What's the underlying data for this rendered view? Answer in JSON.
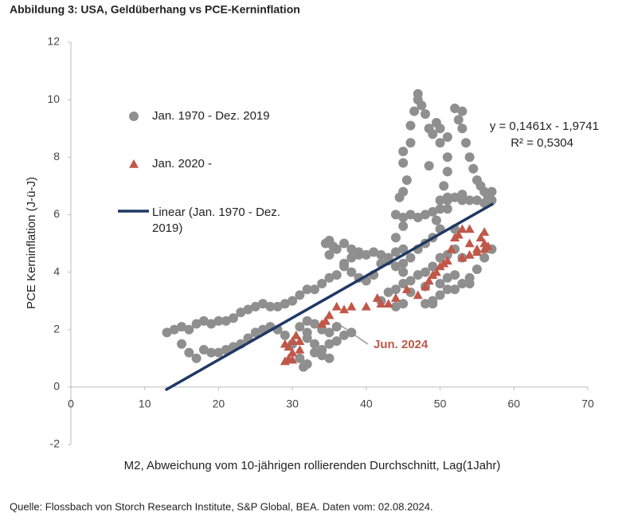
{
  "chart_data": {
    "type": "scatter",
    "title": "Abbildung 3: USA, Geldüberhang vs PCE-Kerninflation",
    "x_label": "M2, Abweichung vom 10-jährigen rollierenden Durchschnitt, Lag(1Jahr)",
    "y_label": "PCE Kerninflation (J-ü-J)",
    "source": "Quelle: Flossbach von Storch Research Institute, S&P Global, BEA. Daten vom: 02.08.2024.",
    "annotations": [
      "y = 0,1461x - 1,9741",
      "R² = 0,5304",
      "Jun. 2024"
    ],
    "xlim": [
      0,
      70
    ],
    "xticks": [
      0,
      10,
      20,
      30,
      40,
      50,
      60,
      70
    ],
    "ylim": [
      -2,
      12
    ],
    "yticks": [
      -2,
      0,
      2,
      4,
      6,
      8,
      10,
      12
    ],
    "series": [
      {
        "name": "Jan. 1970 - Dez. 2019",
        "color": "#8f8f8f",
        "marker": "circle",
        "x": [
          13,
          14,
          15,
          16,
          17,
          18,
          19,
          20,
          21,
          22,
          23,
          24,
          25,
          26,
          27,
          28,
          29,
          30,
          31,
          32,
          33,
          34,
          35,
          36,
          37,
          38,
          39,
          40,
          41,
          42,
          43,
          44,
          45,
          15,
          16,
          17,
          18,
          19,
          20,
          21,
          22,
          23,
          24,
          25,
          26,
          27,
          28,
          29,
          30,
          31,
          31.5,
          32,
          33,
          34,
          35,
          36,
          32,
          33,
          32,
          34,
          35,
          36,
          37,
          38,
          33,
          34,
          35,
          31,
          32,
          34.5,
          35,
          35.5,
          35,
          36,
          37,
          38,
          39,
          37,
          38,
          39,
          40,
          41,
          42,
          43,
          44,
          45,
          44,
          45,
          44.5,
          45,
          45.5,
          45,
          45,
          46,
          46,
          46.5,
          47,
          47,
          47.5,
          48,
          48.5,
          49,
          49.5,
          50,
          50,
          51,
          51,
          51,
          50.5,
          51,
          50,
          49.5,
          50,
          49,
          48,
          47,
          46,
          45,
          44,
          45,
          46,
          47,
          48,
          49,
          50,
          51,
          52,
          53,
          52.5,
          53,
          53.5,
          54,
          54.5,
          55,
          55.5,
          56,
          56.5,
          57,
          57,
          56,
          55,
          54,
          53,
          52,
          53,
          51,
          52,
          52,
          51,
          50,
          49,
          48,
          47,
          46,
          45,
          44,
          43,
          42,
          44,
          45,
          46,
          48,
          49,
          50,
          51,
          52,
          53,
          54,
          55,
          56,
          57,
          54,
          53,
          52,
          49,
          48,
          50,
          51,
          48.5
        ],
        "y": [
          1.9,
          2.0,
          2.1,
          2.0,
          2.2,
          2.3,
          2.2,
          2.3,
          2.3,
          2.4,
          2.6,
          2.7,
          2.8,
          2.9,
          2.8,
          2.8,
          2.9,
          3.0,
          3.2,
          3.4,
          3.4,
          3.6,
          3.8,
          3.9,
          4.2,
          4.5,
          4.6,
          4.6,
          4.7,
          4.6,
          4.4,
          4.2,
          4.0,
          1.5,
          1.2,
          1.0,
          1.3,
          1.2,
          1.2,
          1.3,
          1.4,
          1.5,
          1.7,
          1.9,
          2.0,
          2.1,
          2.0,
          1.8,
          1.5,
          1.0,
          0.7,
          0.8,
          1.2,
          1.3,
          1.5,
          1.6,
          1.9,
          2.2,
          2.3,
          2.0,
          1.9,
          2.1,
          1.8,
          1.9,
          1.5,
          1.1,
          1.0,
          2.1,
          1.7,
          5.0,
          5.1,
          4.9,
          4.6,
          4.8,
          5.0,
          4.8,
          4.7,
          4.3,
          4.0,
          3.8,
          3.7,
          3.9,
          4.3,
          4.5,
          4.7,
          4.8,
          5.2,
          5.6,
          6.6,
          6.8,
          7.2,
          7.8,
          8.2,
          8.5,
          9.1,
          9.6,
          10.0,
          10.2,
          9.8,
          9.5,
          9.0,
          8.8,
          9.2,
          9.0,
          8.5,
          8.7,
          8.0,
          7.5,
          7.0,
          6.5,
          6.2,
          5.8,
          5.5,
          5.2,
          5.0,
          4.8,
          4.5,
          4.3,
          6.0,
          5.9,
          6.0,
          5.9,
          6.0,
          6.1,
          6.5,
          6.6,
          9.7,
          9.6,
          9.3,
          9.0,
          8.5,
          8.0,
          7.6,
          7.2,
          7.0,
          6.8,
          6.6,
          6.8,
          6.5,
          6.4,
          6.5,
          6.5,
          6.5,
          6.6,
          6.7,
          6.2,
          5.5,
          4.8,
          4.6,
          4.5,
          4.2,
          4.0,
          3.9,
          3.7,
          3.6,
          3.4,
          3.3,
          3.0,
          2.8,
          2.9,
          3.3,
          2.9,
          3.0,
          3.2,
          3.4,
          3.4,
          3.6,
          3.8,
          4.1,
          4.5,
          4.8,
          3.6,
          4.5,
          3.9,
          2.9,
          3.5,
          3.6,
          3.8,
          7.7
        ]
      },
      {
        "name": "Jan. 2020 -",
        "color": "#c0584a",
        "marker": "triangle",
        "x": [
          29,
          29.5,
          30,
          30,
          29.5,
          30,
          30.5,
          31,
          29,
          31,
          34,
          35,
          36,
          37,
          38,
          40,
          41.5,
          42,
          43,
          44,
          45.5,
          47,
          48,
          48.5,
          49,
          49.5,
          50,
          50.5,
          51,
          51.5,
          52,
          52.5,
          53,
          54,
          54,
          55,
          55.5,
          56,
          56,
          56.5,
          56,
          55,
          54,
          53,
          34.5
        ],
        "y": [
          0.9,
          1.0,
          0.95,
          1.2,
          1.4,
          1.6,
          1.8,
          1.6,
          1.5,
          1.3,
          2.2,
          2.5,
          2.8,
          2.7,
          2.8,
          2.8,
          3.1,
          2.9,
          2.9,
          3.1,
          3.4,
          3.2,
          3.5,
          3.7,
          3.9,
          4.0,
          4.2,
          4.3,
          4.4,
          4.8,
          5.2,
          5.3,
          5.5,
          5.5,
          5.0,
          4.8,
          5.2,
          5.4,
          5.0,
          4.9,
          4.8,
          4.7,
          4.6,
          4.5,
          2.3
        ]
      },
      {
        "name": "Linear (Jan. 1970 - Dez. 2019)",
        "color": "#1f3864",
        "marker": "line",
        "x": [
          12.8,
          57.2
        ],
        "y": [
          -0.104,
          6.383
        ]
      }
    ]
  }
}
